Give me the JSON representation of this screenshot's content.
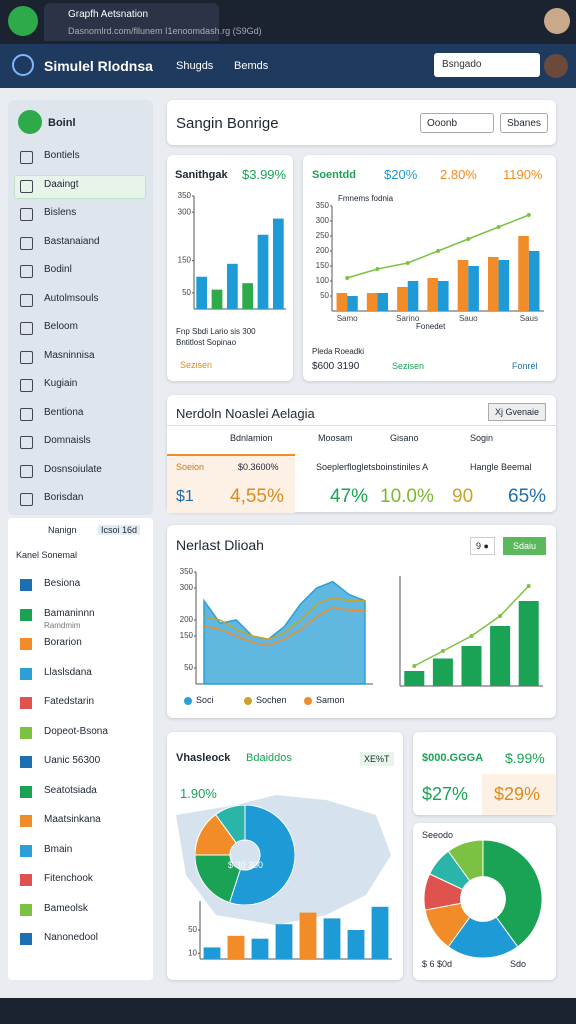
{
  "browser": {
    "tab_title": "Grapfh Aetsnation",
    "address": "Dasnomlrd.com/fllunem  I1enoomdash.rg (S9Gd)"
  },
  "app": {
    "brand": "Simulel Rlodnsa",
    "menu": [
      "Shugds",
      "Bemds"
    ],
    "search": "Bsngado"
  },
  "sidebar": {
    "header": "Boinl",
    "active": 1,
    "items": [
      "Bontiels",
      "Daaingt",
      "Bislens",
      "Bastanaiand",
      "Bodinl",
      "Autolmsouls",
      "Beloom",
      "Masninnisa",
      "Kugiain",
      "Bentiona",
      "Domnaisls",
      "Dosnsoiulate",
      "Borisdan"
    ],
    "filter": "Nanign",
    "badge": "Icsoi 16d",
    "section": "Kanel Sonemal",
    "items2": [
      "Besiona",
      "Bamaninnn",
      "Borarion",
      "Llaslsdana",
      "Fatedstarin",
      "Dopeot-Bsona",
      "Uanic 56300",
      "Seatotsiada",
      "Maatsinkana",
      "Bmain",
      "Fitenchook",
      "Bameolsk",
      "Nanonedool"
    ],
    "sub": "Ramdmim"
  },
  "header_panel": {
    "title": "Sangin Bonrige",
    "dropdown": "Ooonb",
    "button": "Sbanes"
  },
  "card1": {
    "title": "Sanithgak",
    "value": "$3.99%",
    "caption": "Fnp Sbdi   Lario sis 300",
    "caption2": "Bntitlost  Sopinao",
    "link": "Sezisen",
    "chart": {
      "ylim": [
        0,
        350
      ],
      "yticks": [
        50,
        150,
        300,
        350
      ],
      "series": [
        {
          "values": [
            100,
            60,
            140,
            80,
            230,
            280
          ],
          "colors": [
            "#1e9bd7",
            "#2eaa4a",
            "#1e9bd7",
            "#2eaa4a",
            "#1e9bd7",
            "#1e9bd7"
          ]
        }
      ]
    }
  },
  "card2": {
    "title": "Soentdd",
    "stats": [
      "$20%",
      "2.80%",
      "1190%"
    ],
    "chart_title": "Fmnems fodnia",
    "x_label": "Fonedet",
    "footer": "Pleda Roeadki",
    "amount": "$600 3190",
    "link": "Sezisen",
    "link2": "Fonrél",
    "chart": {
      "ylim": [
        0,
        350
      ],
      "yticks": [
        50,
        100,
        150,
        200,
        250,
        300,
        350
      ],
      "categories": [
        "Samo",
        null,
        "Sarino",
        null,
        "Sauo",
        null,
        "Saus"
      ],
      "series": [
        {
          "kind": "bar",
          "color": "#f28c28",
          "values": [
            60,
            60,
            80,
            110,
            170,
            180,
            250
          ]
        },
        {
          "kind": "bar",
          "color": "#1e9bd7",
          "values": [
            50,
            60,
            100,
            100,
            150,
            170,
            200
          ]
        },
        {
          "kind": "line",
          "color": "#7cc242",
          "values": [
            110,
            140,
            160,
            200,
            240,
            280,
            320
          ]
        }
      ]
    }
  },
  "stats_panel": {
    "title": "Nerdoln Noaslei Aelagia",
    "button": "Xj Gvenaie",
    "headers": [
      "Bdnlamion",
      "Moosam",
      "Gisano",
      "Sogin"
    ],
    "labels": [
      "Soeion",
      "$0.3600%",
      "Soeplerflogletsboinstiniles A",
      "Hangle Beemal"
    ],
    "values": [
      "$1",
      "4,55%",
      "47%",
      "10.0%",
      "90",
      "65%"
    ]
  },
  "trend_panel": {
    "title": "Nerlast Dlioah",
    "pill": "9 ●",
    "button": "Sdaiu",
    "area": {
      "ylim": [
        0,
        350
      ],
      "yticks": [
        50,
        150,
        200,
        300,
        350
      ],
      "series": [
        {
          "kind": "area",
          "name": "Soci",
          "color": "#2b9fd6",
          "values": [
            260,
            190,
            200,
            150,
            140,
            180,
            250,
            300,
            320,
            280,
            260
          ]
        },
        {
          "kind": "line",
          "name": "Sochen",
          "color": "#c9a227",
          "values": [
            210,
            200,
            170,
            150,
            140,
            160,
            200,
            250,
            270,
            260,
            260
          ]
        },
        {
          "kind": "line",
          "name": "Samon",
          "color": "#f28c28",
          "values": [
            180,
            170,
            150,
            130,
            120,
            140,
            170,
            210,
            240,
            230,
            230
          ]
        }
      ]
    },
    "bars": {
      "ylim": [
        0,
        220
      ],
      "series": [
        {
          "kind": "bar",
          "color": "#1aa355",
          "values": [
            30,
            55,
            80,
            120,
            170
          ]
        },
        {
          "kind": "line",
          "color": "#7cc242",
          "values": [
            40,
            70,
            100,
            140,
            200
          ]
        }
      ]
    }
  },
  "map_card": {
    "title": "Vhasleock",
    "tag": "Bdaiddos",
    "badge": "XE%T",
    "value": "1.90%",
    "center": "$ 30 300",
    "pie": {
      "values": [
        55,
        20,
        15,
        10
      ],
      "colors": [
        "#1e9bd7",
        "#1aa355",
        "#f28c28",
        "#2bb5a8"
      ]
    },
    "bars": {
      "ylim": [
        0,
        100
      ],
      "yticks": [
        10,
        50
      ],
      "series": [
        {
          "values": [
            20,
            40,
            35,
            60,
            80,
            70,
            50,
            90
          ],
          "colors": [
            "#1e9bd7",
            "#f28c28",
            "#1e9bd7",
            "#1e9bd7",
            "#f28c28",
            "#1e9bd7",
            "#1e9bd7",
            "#1e9bd7"
          ]
        }
      ]
    }
  },
  "value_card": {
    "title": "$000.GGGA",
    "value": "$.99%",
    "value2": "$27%",
    "value3": "$29%"
  },
  "donut_card": {
    "title": "Seeodo",
    "legend": "$ 6 $0d",
    "legend2": "Sdo",
    "pie": {
      "values": [
        40,
        20,
        12,
        10,
        8,
        10
      ],
      "colors": [
        "#1aa355",
        "#1e9bd7",
        "#f28c28",
        "#e0524d",
        "#2bb5a8",
        "#7cc242"
      ]
    }
  }
}
